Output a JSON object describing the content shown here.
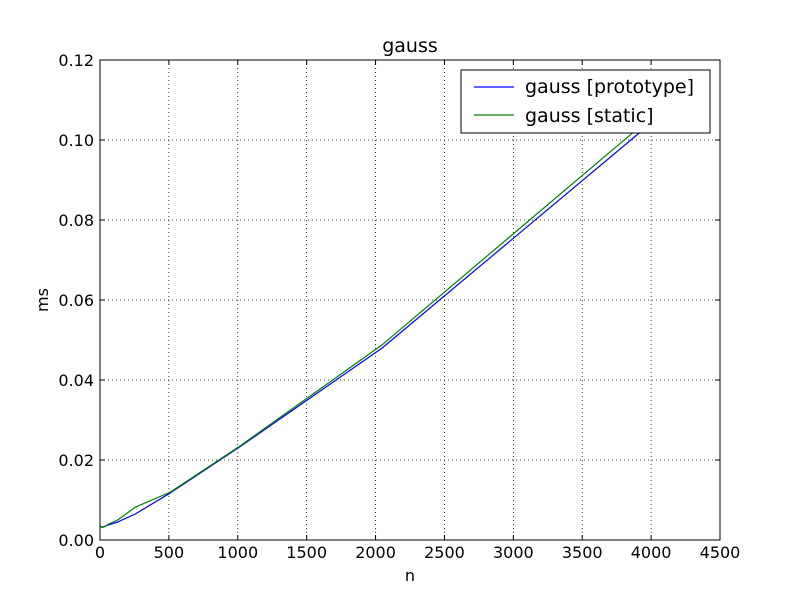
{
  "chart_data": {
    "type": "line",
    "title": "gauss",
    "xlabel": "n",
    "ylabel": "ms",
    "xlim": [
      0,
      4500
    ],
    "ylim": [
      0,
      0.12
    ],
    "grid": true,
    "legend_position": "top-right",
    "x_ticks": [
      "0",
      "500",
      "1000",
      "1500",
      "2000",
      "2500",
      "3000",
      "3500",
      "4000",
      "4500"
    ],
    "y_ticks": [
      "0.00",
      "0.02",
      "0.04",
      "0.06",
      "0.08",
      "0.10",
      "0.12"
    ],
    "series": [
      {
        "name": "gauss [prototype]",
        "color": "#0000ff",
        "points": [
          [
            0,
            0.0035
          ],
          [
            16,
            0.0032
          ],
          [
            32,
            0.0034
          ],
          [
            64,
            0.0038
          ],
          [
            128,
            0.0045
          ],
          [
            256,
            0.0065
          ],
          [
            512,
            0.0118
          ],
          [
            1024,
            0.0235
          ],
          [
            2048,
            0.048
          ],
          [
            4096,
            0.107
          ]
        ]
      },
      {
        "name": "gauss [static]",
        "color": "#008000",
        "points": [
          [
            0,
            0.0035
          ],
          [
            16,
            0.0031
          ],
          [
            32,
            0.0033
          ],
          [
            64,
            0.004
          ],
          [
            128,
            0.005
          ],
          [
            256,
            0.0082
          ],
          [
            512,
            0.012
          ],
          [
            1024,
            0.0237
          ],
          [
            2048,
            0.0488
          ],
          [
            4096,
            0.1085
          ]
        ]
      }
    ]
  }
}
